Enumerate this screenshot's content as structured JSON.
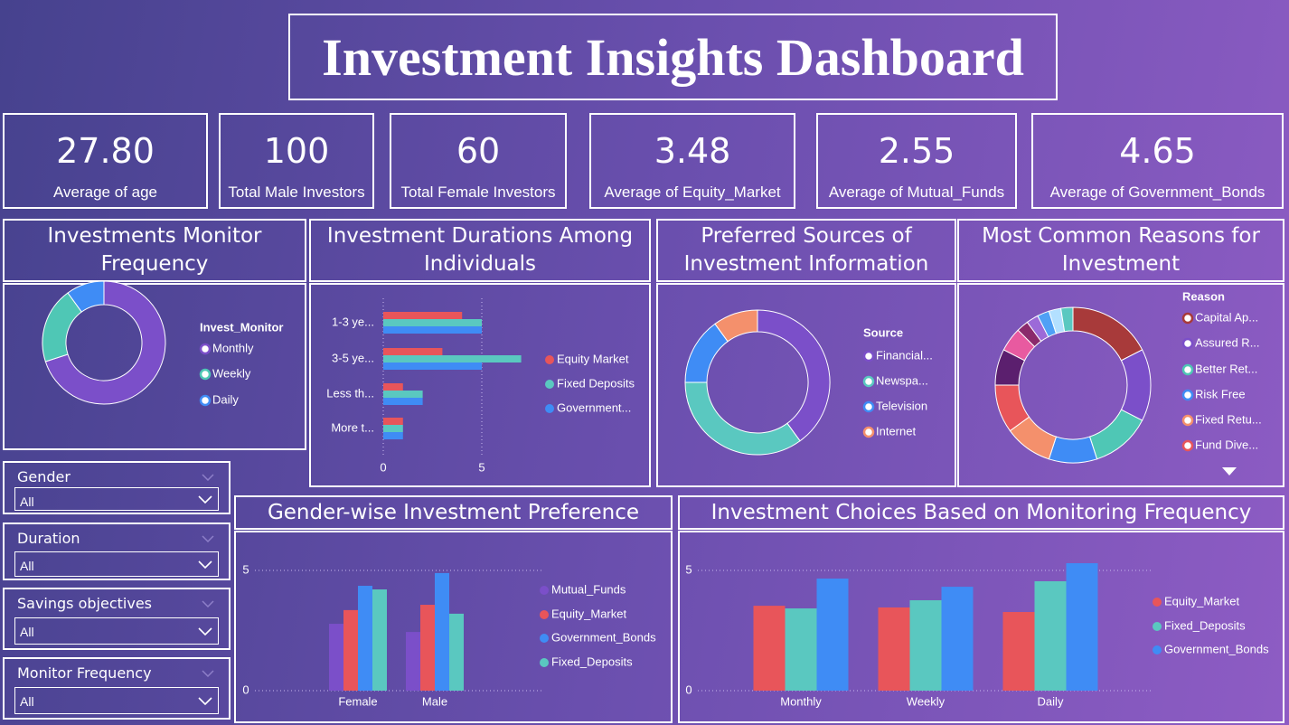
{
  "header": {
    "title": "Investment Insights Dashboard"
  },
  "kpis": [
    {
      "value": "27.80",
      "label": "Average of age"
    },
    {
      "value": "100",
      "label": "Total Male Investors"
    },
    {
      "value": "60",
      "label": "Total Female Investors"
    },
    {
      "value": "3.48",
      "label": "Average of Equity_Market"
    },
    {
      "value": "2.55",
      "label": "Average of Mutual_Funds"
    },
    {
      "value": "4.65",
      "label": "Average of Government_Bonds"
    }
  ],
  "slicers": [
    {
      "title": "Gender",
      "value": "All"
    },
    {
      "title": "Duration",
      "value": "All"
    },
    {
      "title": "Savings objectives",
      "value": "All"
    },
    {
      "title": "Monitor Frequency",
      "value": "All"
    }
  ],
  "chart_data": [
    {
      "type": "donut",
      "title": "Investments Monitor Frequency",
      "legend_title": "Invest_Monitor",
      "categories": [
        "Monthly",
        "Weekly",
        "Daily"
      ],
      "values": [
        28,
        8,
        4
      ],
      "colors": [
        "#7b4fc9",
        "#4fc7b5",
        "#3f8cf5"
      ]
    },
    {
      "type": "hbar",
      "title": "Investment Durations Among Individuals",
      "categories": [
        "1-3 ye...",
        "3-5 ye...",
        "Less th...",
        "More t..."
      ],
      "series": [
        {
          "name": "Equity Market",
          "color": "#e8555a",
          "values": [
            4,
            3,
            1,
            1
          ]
        },
        {
          "name": "Fixed Deposits",
          "color": "#5ac8c0",
          "values": [
            5,
            7,
            2,
            1
          ]
        },
        {
          "name": "Government...",
          "color": "#3f8cf5",
          "values": [
            5,
            5,
            2,
            1
          ]
        }
      ],
      "xlim": [
        0,
        7.5
      ],
      "xticks": [
        0,
        5
      ],
      "grid": true
    },
    {
      "type": "donut",
      "title": "Preferred Sources of Investment Information",
      "legend_title": "Source",
      "categories": [
        "Financial...",
        "Newspa...",
        "Television",
        "Internet"
      ],
      "values": [
        16,
        14,
        6,
        4
      ],
      "colors": [
        "#7b4fc9",
        "#5ac8c0",
        "#3f8cf5",
        "#f4906c"
      ]
    },
    {
      "type": "donut",
      "title": "Most Common Reasons for Investment",
      "legend_title": "Reason",
      "categories": [
        "Capital Ap...",
        "Assured R...",
        "Better Ret...",
        "Risk Free",
        "Fixed Retu...",
        "Fund Dive...",
        null,
        null,
        null,
        null,
        null,
        null,
        null
      ],
      "values": [
        7,
        6,
        5,
        4,
        4,
        4,
        3,
        2,
        1,
        1,
        1,
        1,
        1
      ],
      "colors": [
        "#a83a3a",
        "#7b4fc9",
        "#4fc7b5",
        "#3f8cf5",
        "#f4906c",
        "#e8555a",
        "#5b1f6e",
        "#e85aa0",
        "#8b2a6b",
        "#9c6ad8",
        "#4fa0f5",
        "#b3e0ff",
        "#5ac8c0"
      ]
    },
    {
      "type": "vbar",
      "title": "Gender-wise Investment Preference",
      "categories": [
        "Female",
        "Male"
      ],
      "series": [
        {
          "name": "Mutual_Funds",
          "color": "#7b4fc9",
          "values": [
            2.78,
            2.44
          ]
        },
        {
          "name": "Equity_Market",
          "color": "#e8555a",
          "values": [
            3.35,
            3.57
          ]
        },
        {
          "name": "Government_Bonds",
          "color": "#3f8cf5",
          "values": [
            4.36,
            4.89
          ]
        },
        {
          "name": "Fixed_Deposits",
          "color": "#5ac8c0",
          "values": [
            4.21,
            3.2
          ]
        }
      ],
      "ylim": [
        0,
        5.5
      ],
      "yticks": [
        0,
        5
      ],
      "grid": true
    },
    {
      "type": "vbar",
      "title": "Investment Choices Based on Monitoring Frequency",
      "categories": [
        "Monthly",
        "Weekly",
        "Daily"
      ],
      "series": [
        {
          "name": "Equity_Market",
          "color": "#e8555a",
          "values": [
            3.53,
            3.46,
            3.27
          ]
        },
        {
          "name": "Fixed_Deposits",
          "color": "#5ac8c0",
          "values": [
            3.42,
            3.76,
            4.55
          ]
        },
        {
          "name": "Government_Bonds",
          "color": "#3f8cf5",
          "values": [
            4.66,
            4.32,
            5.3
          ]
        }
      ],
      "ylim": [
        0,
        5.5
      ],
      "yticks": [
        0,
        5
      ],
      "grid": true
    }
  ]
}
